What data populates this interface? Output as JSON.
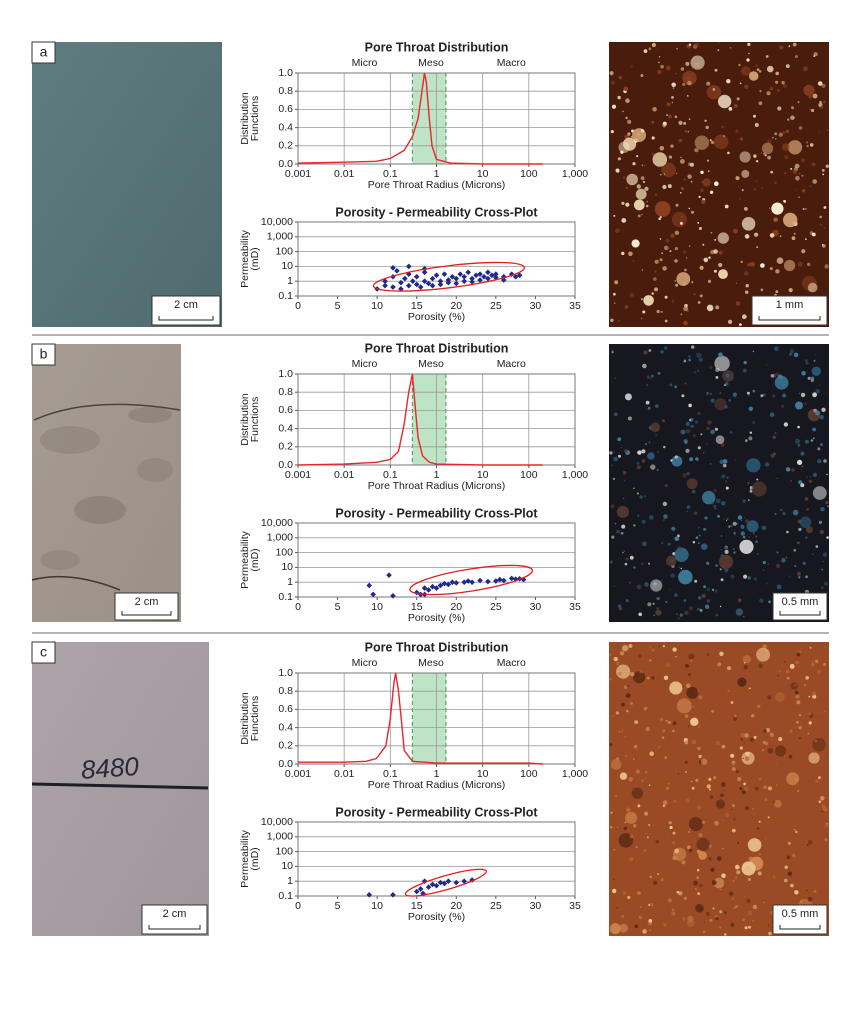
{
  "panels": [
    {
      "label": "a",
      "core_scale": "2 cm",
      "thin_section_scale": "1 mm"
    },
    {
      "label": "b",
      "core_scale": "2 cm",
      "thin_section_scale": "0.5 mm"
    },
    {
      "label": "c",
      "core_scale": "2 cm",
      "core_marking": "8480",
      "thin_section_scale": "0.5 mm"
    }
  ],
  "chart_data": [
    {
      "type": "line",
      "title": "Pore Throat Distribution",
      "xlabel": "Pore Throat Radius (Microns)",
      "ylabel": [
        "Distribution",
        "Functions"
      ],
      "region_labels": [
        "Micro",
        "Meso",
        "Macro"
      ],
      "shaded_band": [
        0.3,
        1.6
      ],
      "xscale": "log",
      "grid": "both",
      "color": "#e8262b",
      "x": [
        0.001,
        0.01,
        0.05,
        0.1,
        0.2,
        0.3,
        0.4,
        0.5,
        0.55,
        0.6,
        0.7,
        0.8,
        1,
        2,
        10,
        100,
        200
      ],
      "values": [
        0.01,
        0.02,
        0.03,
        0.06,
        0.15,
        0.3,
        0.5,
        0.85,
        1.0,
        0.9,
        0.5,
        0.2,
        0.05,
        0.01,
        0.0,
        0.0,
        0.0
      ],
      "xlim": [
        0.001,
        1000
      ],
      "xticks": [
        0.001,
        0.01,
        0.1,
        1,
        10,
        100,
        {
          "value": 1000,
          "label": "1,000"
        }
      ],
      "ylim": [
        0,
        1
      ],
      "yticks": [
        {
          "value": 0,
          "label": "0.0"
        },
        0.2,
        0.4,
        0.6,
        0.8,
        {
          "value": 1,
          "label": "1.0"
        }
      ]
    },
    {
      "type": "scatter",
      "title": "Porosity - Permeability Cross-Plot",
      "xlabel": "Porosity (%)",
      "ylabel": [
        "Permeability",
        "(mD)"
      ],
      "yscale": "log",
      "grid": "y",
      "color": "#1f2a8c",
      "x": [
        10,
        11,
        11,
        12,
        12,
        12.5,
        13,
        13,
        13.5,
        14,
        14,
        14.5,
        15,
        15,
        15.5,
        16,
        16,
        16.5,
        17,
        17,
        17.5,
        18,
        18,
        18.5,
        19,
        19,
        19.5,
        20,
        20,
        20.5,
        21,
        21,
        21.5,
        22,
        22,
        22.5,
        23,
        23,
        23.5,
        24,
        24,
        24.5,
        25,
        25,
        26,
        26,
        27,
        27.5,
        28,
        12,
        16,
        14
      ],
      "values": [
        0.3,
        0.5,
        1,
        0.4,
        2,
        5,
        0.8,
        0.3,
        1.5,
        0.5,
        3,
        1,
        0.6,
        2,
        0.4,
        1,
        4,
        0.7,
        1.5,
        0.5,
        2.5,
        1,
        0.6,
        3,
        1.2,
        0.8,
        2,
        1.5,
        0.7,
        3,
        1,
        2,
        4,
        1.5,
        0.9,
        2.5,
        1.2,
        3,
        2,
        1.5,
        4,
        2.5,
        1.8,
        3,
        2,
        1.2,
        3,
        2,
        2.5,
        8,
        7,
        10
      ],
      "xlim": [
        0,
        35
      ],
      "xticks": [
        0,
        5,
        10,
        15,
        20,
        25,
        30,
        35
      ],
      "ylim": [
        0.1,
        10000
      ],
      "yticks": [
        0.1,
        1,
        10,
        100,
        {
          "value": 1000,
          "label": "1,000"
        },
        {
          "value": 10000,
          "label": "10,000"
        }
      ]
    },
    {
      "type": "line",
      "title": "Pore Throat Distribution",
      "xlabel": "Pore Throat Radius (Microns)",
      "ylabel": [
        "Distribution",
        "Functions"
      ],
      "region_labels": [
        "Micro",
        "Meso",
        "Macro"
      ],
      "shaded_band": [
        0.3,
        1.6
      ],
      "xscale": "log",
      "grid": "both",
      "color": "#e8262b",
      "x": [
        0.001,
        0.01,
        0.05,
        0.1,
        0.15,
        0.2,
        0.25,
        0.3,
        0.35,
        0.4,
        0.5,
        0.7,
        1,
        10,
        200
      ],
      "values": [
        0,
        0.01,
        0.03,
        0.06,
        0.15,
        0.45,
        0.8,
        1.0,
        0.6,
        0.3,
        0.1,
        0.03,
        0.01,
        0,
        0
      ],
      "xlim": [
        0.001,
        1000
      ],
      "xticks": [
        0.001,
        0.01,
        0.1,
        1,
        10,
        100,
        {
          "value": 1000,
          "label": "1,000"
        }
      ],
      "ylim": [
        0,
        1
      ],
      "yticks": [
        {
          "value": 0,
          "label": "0.0"
        },
        0.2,
        0.4,
        0.6,
        0.8,
        {
          "value": 1,
          "label": "1.0"
        }
      ]
    },
    {
      "type": "scatter",
      "title": "Porosity - Permeability Cross-Plot",
      "xlabel": "Porosity (%)",
      "ylabel": [
        "Permeability",
        "(mD)"
      ],
      "yscale": "log",
      "grid": "y",
      "color": "#1f2a8c",
      "x": [
        9,
        9.5,
        11.5,
        12,
        15,
        15.5,
        16,
        16.5,
        17,
        17.5,
        18,
        18.5,
        19,
        19.5,
        20,
        21,
        21.5,
        22,
        23,
        24,
        25,
        25.5,
        26,
        27,
        27.5,
        28,
        28.5,
        16
      ],
      "values": [
        0.6,
        0.15,
        3,
        0.12,
        0.2,
        0.15,
        0.4,
        0.3,
        0.5,
        0.4,
        0.6,
        0.8,
        0.7,
        1,
        0.9,
        1,
        1.2,
        1,
        1.3,
        1.1,
        1.2,
        1.5,
        1.3,
        1.8,
        1.6,
        1.7,
        1.5,
        0.15
      ],
      "xlim": [
        0,
        35
      ],
      "xticks": [
        0,
        5,
        10,
        15,
        20,
        25,
        30,
        35
      ],
      "ylim": [
        0.1,
        10000
      ],
      "yticks": [
        0.1,
        1,
        10,
        100,
        {
          "value": 1000,
          "label": "1,000"
        },
        {
          "value": 10000,
          "label": "10,000"
        }
      ]
    },
    {
      "type": "line",
      "title": "Pore Throat Distribution",
      "xlabel": "Pore Throat Radius (Microns)",
      "ylabel": [
        "Distribution",
        "Functions"
      ],
      "region_labels": [
        "Micro",
        "Meso",
        "Macro"
      ],
      "shaded_band": [
        0.3,
        1.6
      ],
      "xscale": "log",
      "grid": "both",
      "color": "#e8262b",
      "x": [
        0.001,
        0.01,
        0.03,
        0.05,
        0.08,
        0.1,
        0.12,
        0.13,
        0.15,
        0.18,
        0.2,
        0.3,
        1,
        10,
        100,
        200
      ],
      "values": [
        0.02,
        0.02,
        0.03,
        0.06,
        0.2,
        0.5,
        0.9,
        1.0,
        0.8,
        0.4,
        0.15,
        0.03,
        0.01,
        0.01,
        0.01,
        0
      ],
      "xlim": [
        0.001,
        1000
      ],
      "xticks": [
        0.001,
        0.01,
        0.1,
        1,
        10,
        100,
        {
          "value": 1000,
          "label": "1,000"
        }
      ],
      "ylim": [
        0,
        1
      ],
      "yticks": [
        {
          "value": 0,
          "label": "0.0"
        },
        0.2,
        0.4,
        0.6,
        0.8,
        {
          "value": 1,
          "label": "1.0"
        }
      ]
    },
    {
      "type": "scatter",
      "title": "Porosity - Permeability Cross-Plot",
      "xlabel": "Porosity (%)",
      "ylabel": [
        "Permeability",
        "(mD)"
      ],
      "yscale": "log",
      "grid": "y",
      "color": "#1f2a8c",
      "x": [
        9,
        12,
        15,
        15.5,
        16,
        16.5,
        17,
        17.5,
        18,
        18.5,
        19,
        20,
        21,
        22,
        15.8
      ],
      "values": [
        0.12,
        0.12,
        0.2,
        0.3,
        1,
        0.4,
        0.6,
        0.5,
        0.8,
        0.7,
        1,
        0.8,
        1,
        1.2,
        0.15
      ],
      "xlim": [
        0,
        35
      ],
      "xticks": [
        0,
        5,
        10,
        15,
        20,
        25,
        30,
        35
      ],
      "ylim": [
        0.1,
        10000
      ],
      "yticks": [
        0.1,
        1,
        10,
        100,
        {
          "value": 1000,
          "label": "1,000"
        },
        {
          "value": 10000,
          "label": "10,000"
        }
      ]
    }
  ]
}
